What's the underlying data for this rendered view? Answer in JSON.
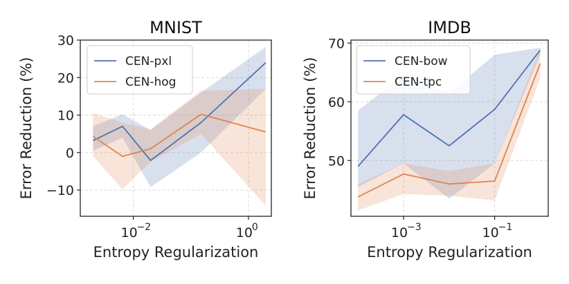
{
  "colors": {
    "series_blue": "#4c72b0",
    "series_orange": "#dd8452"
  },
  "chart_data": [
    {
      "type": "line",
      "title": "MNIST",
      "xlabel": "Entropy Regularization",
      "ylabel": "Error Reduction (%)",
      "xscale": "log",
      "xlim": [
        0.0012,
        2.5
      ],
      "ylim": [
        -17,
        30
      ],
      "x": [
        0.002,
        0.0065,
        0.02,
        0.15,
        2.0
      ],
      "yticks": [
        30,
        20,
        10,
        0,
        -10
      ],
      "ytick_labels": [
        "30",
        "20",
        "10",
        "0",
        "−10"
      ],
      "xticks": [
        0.01,
        1
      ],
      "xtick_labels": [
        "10",
        "10"
      ],
      "xtick_exponents": [
        "−2",
        "0"
      ],
      "legend_position": "top-left",
      "series": [
        {
          "name": "CEN-pxl",
          "color": "#4c72b0",
          "values": [
            3.2,
            7.0,
            -2.1,
            8.0,
            24.0
          ],
          "lower": [
            0.5,
            4.0,
            -9.2,
            0.0,
            17.0
          ],
          "upper": [
            7.0,
            10.2,
            6.0,
            16.0,
            28.2
          ]
        },
        {
          "name": "CEN-hog",
          "color": "#dd8452",
          "values": [
            4.3,
            -1.0,
            1.0,
            10.2,
            5.5
          ],
          "lower": [
            -1.0,
            -9.8,
            -2.5,
            5.0,
            -14.2
          ],
          "upper": [
            10.5,
            8.0,
            6.2,
            16.5,
            17.0
          ]
        }
      ]
    },
    {
      "type": "line",
      "title": "IMDB",
      "xlabel": "Entropy Regularization",
      "ylabel": "Error Reduction (%)",
      "xscale": "log",
      "xlim": [
        7e-05,
        1.5
      ],
      "ylim": [
        40.5,
        70.5
      ],
      "x": [
        0.0001,
        0.001,
        0.01,
        0.1,
        1.0
      ],
      "yticks": [
        70,
        60,
        50
      ],
      "ytick_labels": [
        "70",
        "60",
        "50"
      ],
      "xticks": [
        0.001,
        0.1
      ],
      "xtick_labels": [
        "10",
        "10"
      ],
      "xtick_exponents": [
        "−3",
        "−1"
      ],
      "legend_position": "top-left",
      "series": [
        {
          "name": "CEN-bow",
          "color": "#4c72b0",
          "values": [
            49.0,
            57.8,
            52.5,
            58.7,
            68.8
          ],
          "lower": [
            45.5,
            49.5,
            43.5,
            49.5,
            68.0
          ],
          "upper": [
            58.5,
            64.5,
            61.5,
            68.0,
            69.2
          ]
        },
        {
          "name": "CEN-tpc",
          "color": "#dd8452",
          "values": [
            43.8,
            47.7,
            46.0,
            46.5,
            66.5
          ],
          "lower": [
            41.5,
            44.3,
            44.0,
            43.2,
            64.0
          ],
          "upper": [
            46.0,
            49.5,
            48.2,
            49.5,
            69.0
          ]
        }
      ]
    }
  ]
}
